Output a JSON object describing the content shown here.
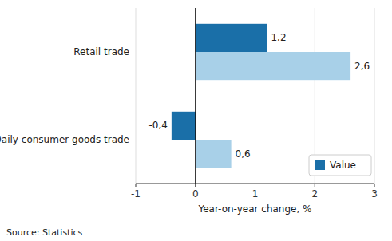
{
  "chart_data": {
    "type": "bar",
    "orientation": "horizontal",
    "categories": [
      "Retail trade",
      "Daily consumer goods trade"
    ],
    "series": [
      {
        "name": "Value",
        "color": "#1a6fa8",
        "values": [
          1.2,
          -0.4
        ],
        "value_labels": [
          "1,2",
          "-0,4"
        ]
      },
      {
        "color": "#a8d0e8",
        "values": [
          2.6,
          0.6
        ],
        "value_labels": [
          "2,6",
          "0,6"
        ]
      }
    ],
    "xlabel": "Year-on-year change, %",
    "xlim": [
      -1,
      3
    ],
    "xticks": [
      -1,
      0,
      1,
      2,
      3
    ],
    "grid": true,
    "legend": "lower right",
    "data_labels": true,
    "source": "Source: Statistics"
  }
}
